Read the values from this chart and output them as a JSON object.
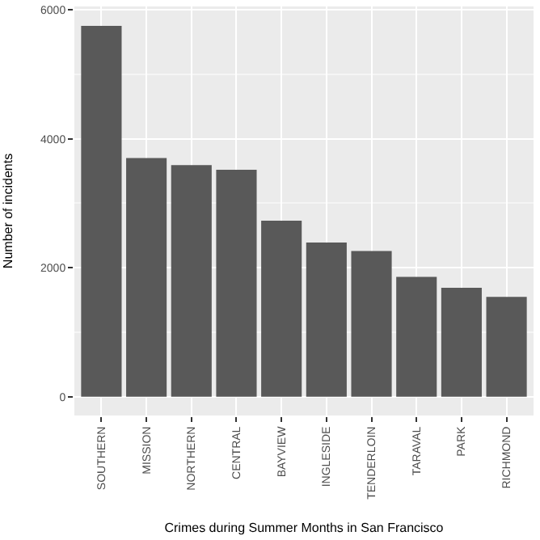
{
  "chart_data": {
    "type": "bar",
    "xlabel": "Crimes during Summer Months in San Francisco",
    "ylabel": "Number of incidents",
    "categories": [
      "SOUTHERN",
      "MISSION",
      "NORTHERN",
      "CENTRAL",
      "BAYVIEW",
      "INGLESIDE",
      "TENDERLOIN",
      "TARAVAL",
      "PARK",
      "RICHMOND"
    ],
    "values": [
      5750,
      3700,
      3590,
      3520,
      2730,
      2390,
      2260,
      1860,
      1690,
      1550
    ],
    "color": "#595959",
    "ylim": [
      -290,
      6050
    ],
    "yticks": [
      0,
      2000,
      4000,
      6000
    ],
    "grid": true
  }
}
